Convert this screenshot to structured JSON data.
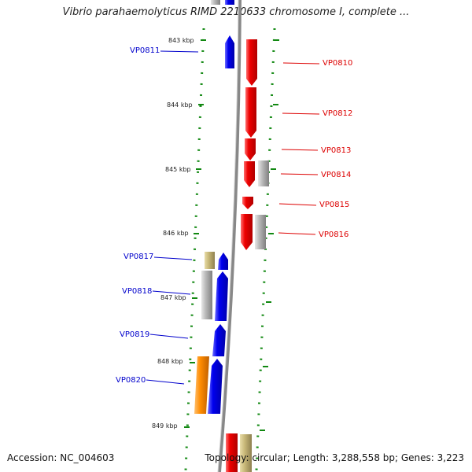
{
  "title": "Vibrio parahaemolyticus RIMD 2210633 chromosome I, complete ...",
  "footer": {
    "accession": "Accession: NC_004603",
    "summary": "Topology: circular; Length: 3,288,558 bp; Genes: 3,223"
  },
  "ruler": [
    "843 kbp",
    "844 kbp",
    "845 kbp",
    "846 kbp",
    "847 kbp",
    "848 kbp",
    "849 kbp"
  ],
  "genes": [
    {
      "name": "VP0811",
      "strand": "+"
    },
    {
      "name": "VP0810",
      "strand": "-"
    },
    {
      "name": "VP0812",
      "strand": "-"
    },
    {
      "name": "VP0813",
      "strand": "-"
    },
    {
      "name": "VP0814",
      "strand": "-"
    },
    {
      "name": "VP0815",
      "strand": "-"
    },
    {
      "name": "VP0816",
      "strand": "-"
    },
    {
      "name": "VP0817",
      "strand": "+"
    },
    {
      "name": "VP0818",
      "strand": "+"
    },
    {
      "name": "VP0819",
      "strand": "+"
    },
    {
      "name": "VP0820",
      "strand": "+"
    }
  ],
  "colors": {
    "forward": "#0000dd",
    "reverse": "#ee0000",
    "grey": "#b4b4b4",
    "khaki": "#c8b878",
    "orange": "#ff8c00",
    "backbone": "#888888",
    "ruler_ticks": "#118811",
    "forward_label": "#0000cc",
    "reverse_label": "#dd0000"
  }
}
